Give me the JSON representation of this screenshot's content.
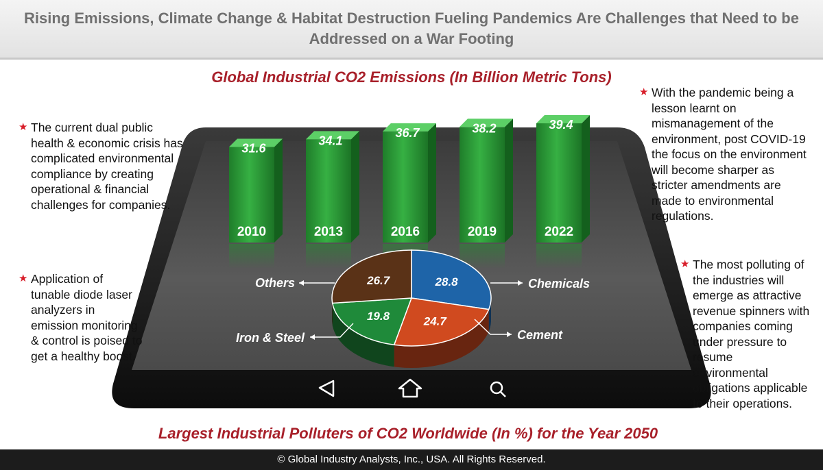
{
  "header": {
    "title": "Rising Emissions, Climate Change & Habitat Destruction Fueling Pandemics Are Challenges that Need to be Addressed on a War Footing"
  },
  "top_chart_title": "Global Industrial CO2 Emissions (In Billion Metric Tons)",
  "bottom_chart_title": "Largest Industrial Polluters of CO2 Worldwide (In %) for the Year 2050",
  "left_bullets": [
    "The current dual public health & economic crisis has complicated environmental compliance by creating operational & financial challenges for companies.",
    "Application of tunable diode laser analyzers in emission monitoring & control is poised to get a healthy boost."
  ],
  "right_bullets": [
    "With the pandemic being a lesson learnt on mismanagement of the environment, post COVID-19 the focus on the environment will become sharper as stricter amendments are made to environmental regulations.",
    "The most polluting of the industries will emerge as attractive revenue spinners with companies coming under pressure to resume environmental obligations applicable to their operations."
  ],
  "chart_data": [
    {
      "type": "bar",
      "title": "Global Industrial CO2 Emissions (In Billion Metric Tons)",
      "categories": [
        "2010",
        "2013",
        "2016",
        "2019",
        "2022"
      ],
      "values": [
        31.6,
        34.1,
        36.7,
        38.2,
        39.4
      ],
      "value_labels": [
        "31.6",
        "34.1",
        "36.7",
        "38.2",
        "39.4"
      ],
      "ylim": [
        0,
        45
      ],
      "color": "#2e9e3a"
    },
    {
      "type": "pie",
      "title": "Largest Industrial Polluters of CO2 Worldwide (In %) for the Year 2050",
      "slices": [
        {
          "label": "Chemicals",
          "value": 28.8,
          "value_label": "28.8",
          "color": "#1e64a8"
        },
        {
          "label": "Cement",
          "value": 24.7,
          "value_label": "24.7",
          "color": "#d04a1f"
        },
        {
          "label": "Iron & Steel",
          "value": 19.8,
          "value_label": "19.8",
          "color": "#1f8a3a"
        },
        {
          "label": "Others",
          "value": 26.7,
          "value_label": "26.7",
          "color": "#5a3217"
        }
      ]
    }
  ],
  "nav_icons": [
    "back-icon",
    "home-icon",
    "search-icon"
  ],
  "footer": {
    "copyright": "© Global Industry Analysts, Inc., USA. All Rights Reserved."
  }
}
